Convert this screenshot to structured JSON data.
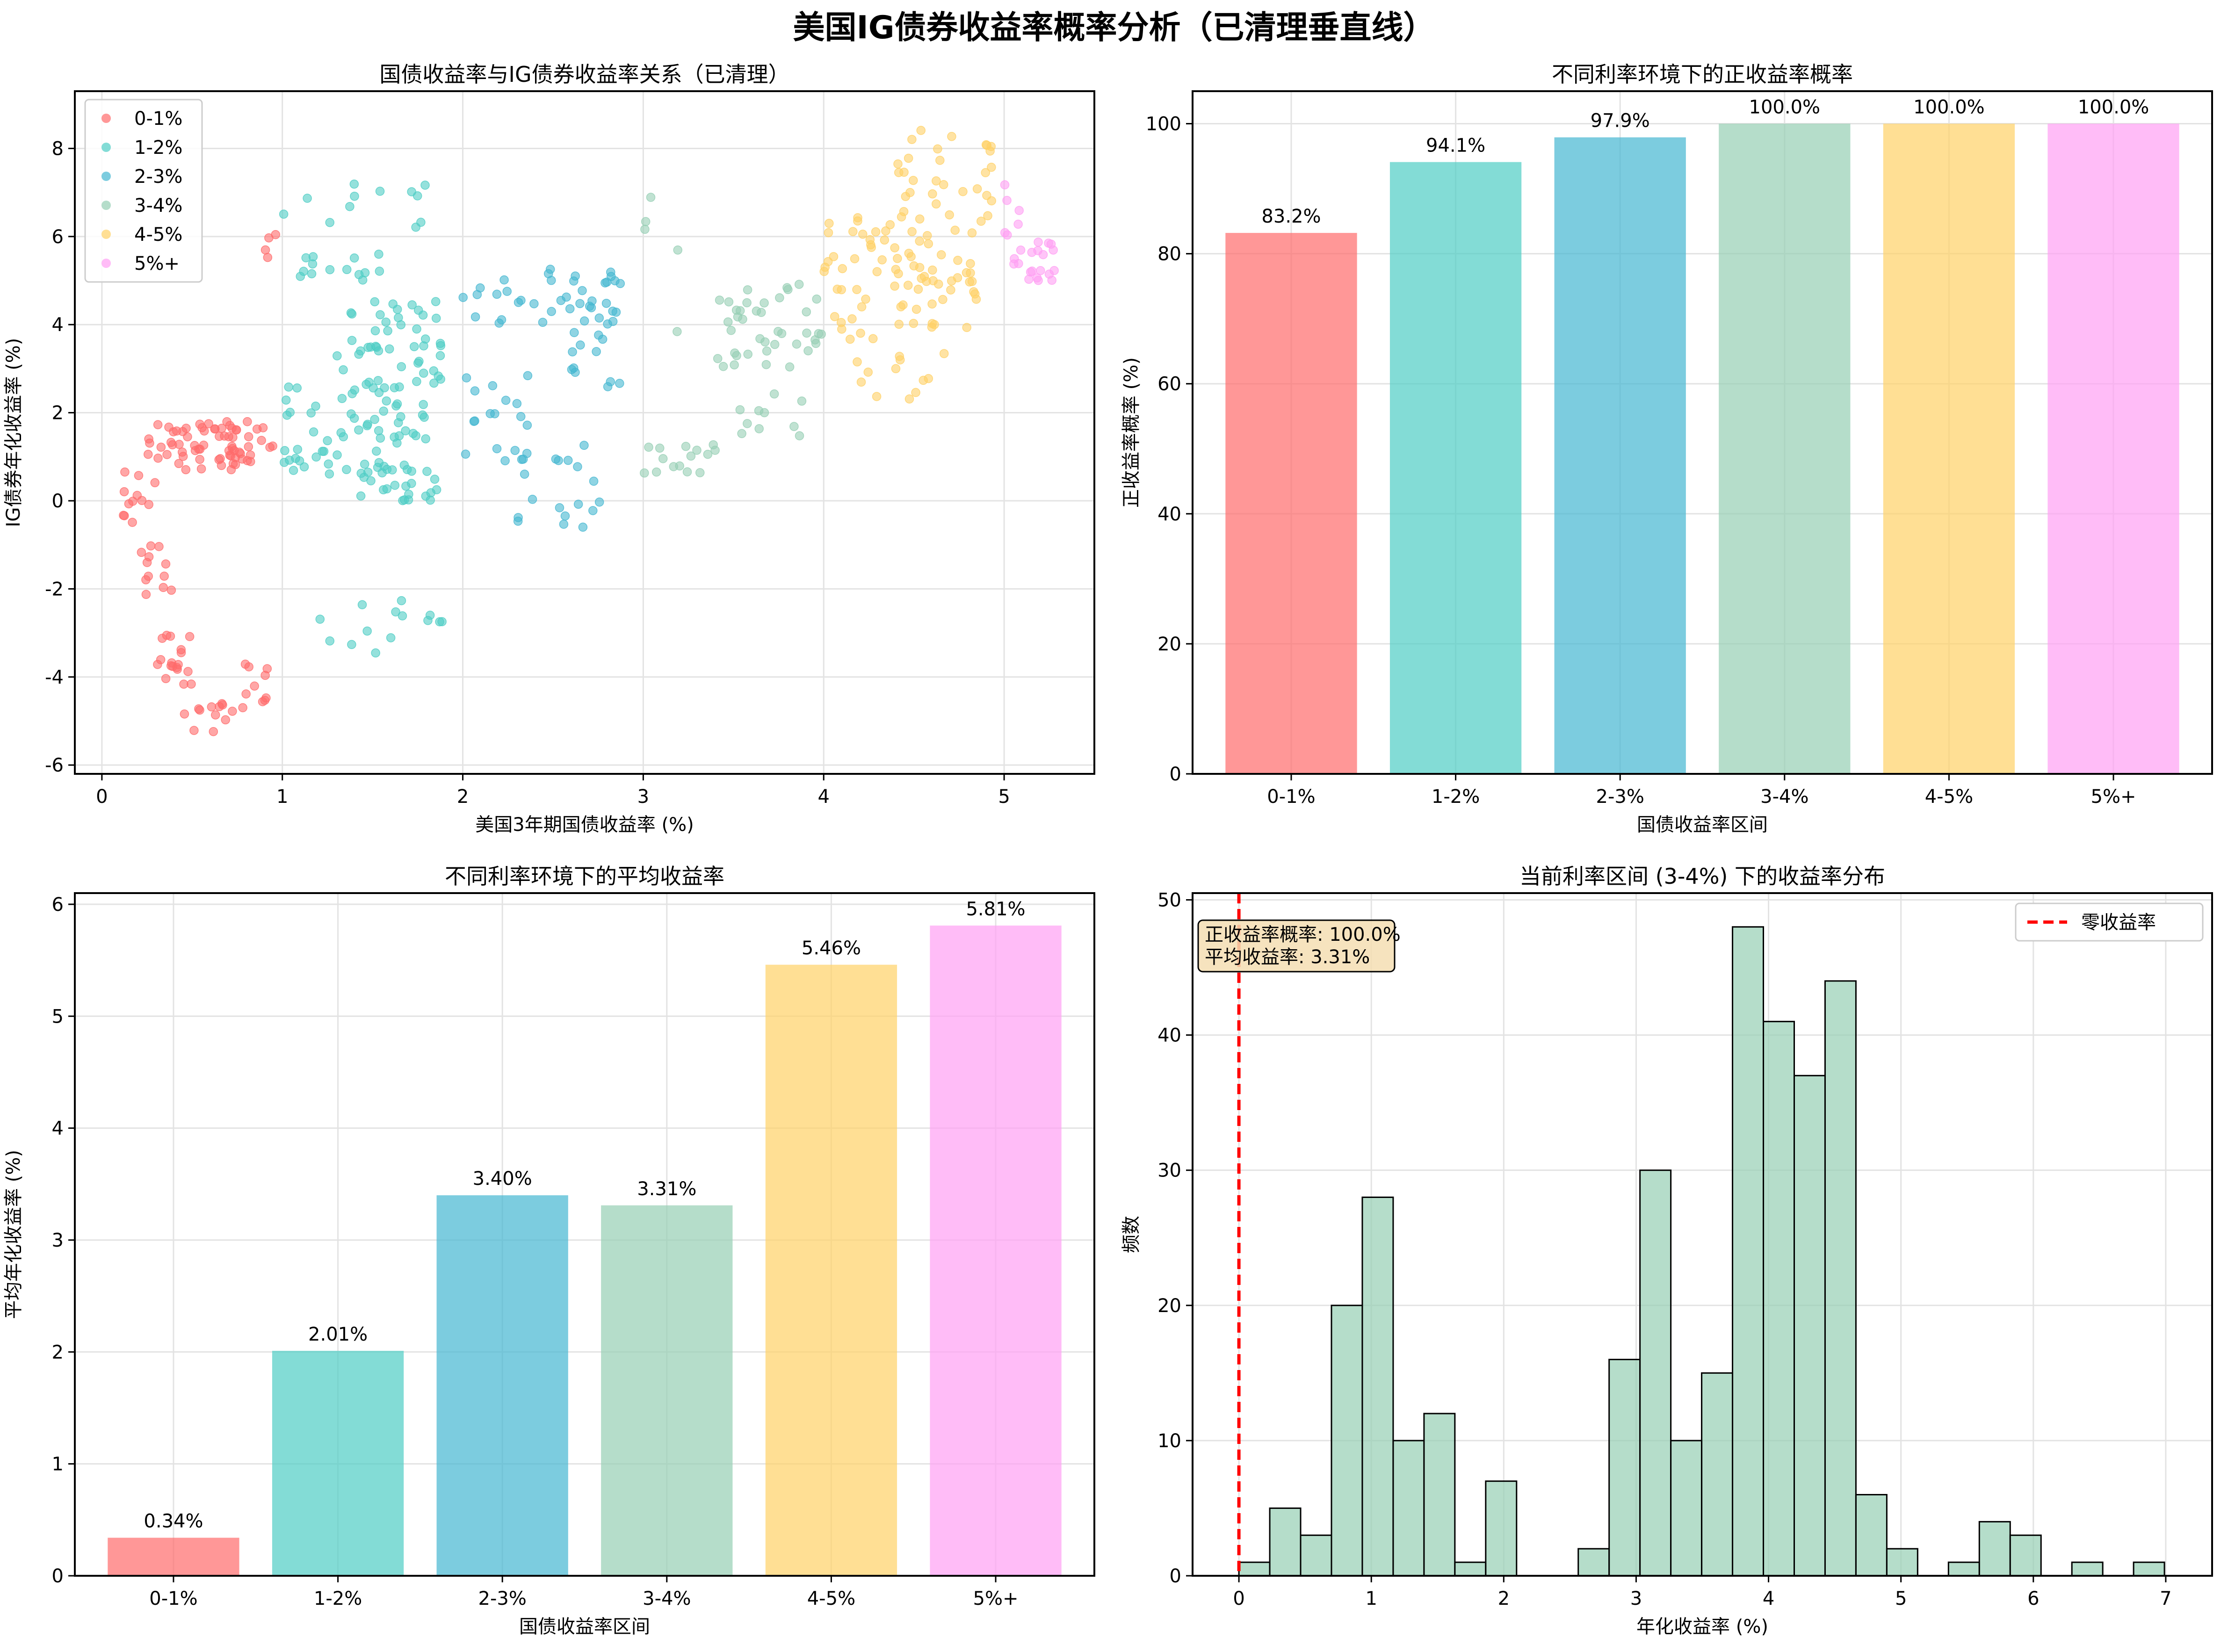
{
  "figure": {
    "suptitle": "美国IG债券收益率概率分析（已清理垂直线）"
  },
  "colors": {
    "0-1%": "#ff6b6b",
    "1-2%": "#4ecdc4",
    "2-3%": "#45b7d1",
    "3-4%": "#96ceb4",
    "4-5%": "#ffd166",
    "5%+": "#ff9ff3",
    "zero_line": "#ff0000"
  },
  "chart_data": [
    {
      "type": "scatter",
      "title": "国债收益率与IG债券收益率关系（已清理）",
      "xlabel": "美国3年期国债收益率 (%)",
      "ylabel": "IG债券年化收益率 (%)",
      "xlim": [
        -0.15,
        5.5
      ],
      "ylim": [
        -6.2,
        9.3
      ],
      "xticks": [
        0,
        1,
        2,
        3,
        4,
        5
      ],
      "yticks": [
        -6,
        -4,
        -2,
        0,
        2,
        4,
        6,
        8
      ],
      "grid": true,
      "legend_position": "upper-left",
      "series": [
        {
          "name": "0-1%",
          "clusters": [
            {
              "x0": 0.25,
              "x1": 0.95,
              "y0": 0.7,
              "y1": 1.8,
              "n": 70
            },
            {
              "x0": 0.1,
              "x1": 0.3,
              "y0": -0.5,
              "y1": 0.8,
              "n": 12
            },
            {
              "x0": 0.2,
              "x1": 0.4,
              "y0": -2.5,
              "y1": -1.0,
              "n": 12
            },
            {
              "x0": 0.3,
              "x1": 0.5,
              "y0": -4.2,
              "y1": -3.0,
              "n": 18
            },
            {
              "x0": 0.45,
              "x1": 0.75,
              "y0": -5.3,
              "y1": -4.6,
              "n": 12
            },
            {
              "x0": 0.75,
              "x1": 0.95,
              "y0": -4.8,
              "y1": -3.6,
              "n": 10
            },
            {
              "x0": 0.9,
              "x1": 1.0,
              "y0": 5.5,
              "y1": 6.1,
              "n": 4
            }
          ]
        },
        {
          "name": "1-2%",
          "clusters": [
            {
              "x0": 1.0,
              "x1": 1.8,
              "y0": 0.6,
              "y1": 2.6,
              "n": 60
            },
            {
              "x0": 1.3,
              "x1": 1.9,
              "y0": 2.5,
              "y1": 4.6,
              "n": 50
            },
            {
              "x0": 1.4,
              "x1": 1.9,
              "y0": 0.0,
              "y1": 0.8,
              "n": 25
            },
            {
              "x0": 1.0,
              "x1": 1.6,
              "y0": 5.0,
              "y1": 5.6,
              "n": 14
            },
            {
              "x0": 1.0,
              "x1": 1.8,
              "y0": 6.2,
              "y1": 7.2,
              "n": 12
            },
            {
              "x0": 1.1,
              "x1": 1.9,
              "y0": -3.7,
              "y1": -2.2,
              "n": 14
            }
          ]
        },
        {
          "name": "2-3%",
          "clusters": [
            {
              "x0": 2.0,
              "x1": 2.9,
              "y0": 4.0,
              "y1": 5.3,
              "n": 40
            },
            {
              "x0": 2.0,
              "x1": 2.6,
              "y0": 0.5,
              "y1": 3.0,
              "n": 18
            },
            {
              "x0": 2.6,
              "x1": 2.9,
              "y0": 2.5,
              "y1": 4.0,
              "n": 12
            },
            {
              "x0": 2.3,
              "x1": 2.8,
              "y0": -0.6,
              "y1": 1.5,
              "n": 18
            }
          ]
        },
        {
          "name": "3-4%",
          "clusters": [
            {
              "x0": 3.4,
              "x1": 4.0,
              "y0": 3.0,
              "y1": 5.0,
              "n": 40
            },
            {
              "x0": 3.0,
              "x1": 3.4,
              "y0": 0.6,
              "y1": 1.3,
              "n": 15
            },
            {
              "x0": 3.3,
              "x1": 3.9,
              "y0": 1.3,
              "y1": 2.5,
              "n": 10
            },
            {
              "x0": 3.0,
              "x1": 3.2,
              "y0": 3.5,
              "y1": 7.0,
              "n": 5
            }
          ]
        },
        {
          "name": "4-5%",
          "clusters": [
            {
              "x0": 4.0,
              "x1": 4.9,
              "y0": 3.8,
              "y1": 6.5,
              "n": 80
            },
            {
              "x0": 4.4,
              "x1": 4.95,
              "y0": 6.3,
              "y1": 8.5,
              "n": 30
            },
            {
              "x0": 4.1,
              "x1": 4.7,
              "y0": 2.3,
              "y1": 3.8,
              "n": 14
            }
          ]
        },
        {
          "name": "5%+",
          "clusters": [
            {
              "x0": 5.0,
              "x1": 5.3,
              "y0": 5.0,
              "y1": 5.9,
              "n": 20
            },
            {
              "x0": 5.0,
              "x1": 5.1,
              "y0": 6.0,
              "y1": 7.5,
              "n": 6
            }
          ]
        }
      ]
    },
    {
      "type": "bar",
      "title": "不同利率环境下的正收益率概率",
      "xlabel": "国债收益率区间",
      "ylabel": "正收益率概率 (%)",
      "categories": [
        "0-1%",
        "1-2%",
        "2-3%",
        "3-4%",
        "4-5%",
        "5%+"
      ],
      "values": [
        83.2,
        94.1,
        97.9,
        100.0,
        100.0,
        100.0
      ],
      "labels": [
        "83.2%",
        "94.1%",
        "97.9%",
        "100.0%",
        "100.0%",
        "100.0%"
      ],
      "ylim": [
        0,
        105
      ],
      "yticks": [
        0,
        20,
        40,
        60,
        80,
        100
      ],
      "grid": true
    },
    {
      "type": "bar",
      "title": "不同利率环境下的平均收益率",
      "xlabel": "国债收益率区间",
      "ylabel": "平均年化收益率 (%)",
      "categories": [
        "0-1%",
        "1-2%",
        "2-3%",
        "3-4%",
        "4-5%",
        "5%+"
      ],
      "values": [
        0.34,
        2.01,
        3.4,
        3.31,
        5.46,
        5.81
      ],
      "labels": [
        "0.34%",
        "2.01%",
        "3.40%",
        "3.31%",
        "5.46%",
        "5.81%"
      ],
      "ylim": [
        0,
        6.1
      ],
      "yticks": [
        0,
        1,
        2,
        3,
        4,
        5,
        6
      ],
      "grid": true
    },
    {
      "type": "histogram",
      "title": "当前利率区间 (3-4%) 下的收益率分布",
      "xlabel": "年化收益率 (%)",
      "ylabel": "频数",
      "bin_start": 0.0,
      "bin_width": 0.233,
      "counts": [
        1,
        5,
        3,
        20,
        28,
        10,
        12,
        1,
        7,
        0,
        0,
        2,
        16,
        30,
        10,
        15,
        48,
        41,
        37,
        44,
        6,
        2,
        0,
        1,
        4,
        3,
        0,
        1,
        0,
        1
      ],
      "xlim": [
        -0.35,
        7.35
      ],
      "ylim": [
        0,
        50.5
      ],
      "xticks": [
        0,
        1,
        2,
        3,
        4,
        5,
        6,
        7
      ],
      "yticks": [
        0,
        10,
        20,
        30,
        40,
        50
      ],
      "grid": true,
      "zero_line": {
        "x": 0,
        "label": "零收益率"
      },
      "annotation": [
        "正收益率概率: 100.0%",
        "平均收益率: 3.31%"
      ],
      "legend_position": "upper-right"
    }
  ]
}
